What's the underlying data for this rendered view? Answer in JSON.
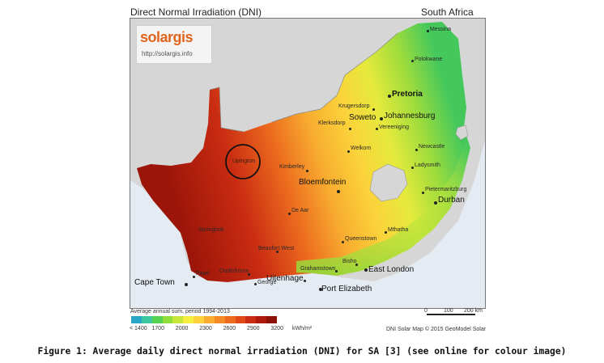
{
  "header": {
    "title": "Direct Normal Irradiation (DNI)",
    "region": "South Africa"
  },
  "logo": {
    "brand": "solargis",
    "url": "http://solargis.info"
  },
  "legend": {
    "title": "Average annual sum, period 1994-2013",
    "ticks": [
      "< 1400",
      "1700",
      "2000",
      "2300",
      "2600",
      "2900",
      "3200"
    ],
    "unit": "kWh/m²",
    "colors": [
      "#2aa7c8",
      "#3cc7a0",
      "#55d24f",
      "#8fdc3b",
      "#c8e63a",
      "#f4ef3e",
      "#fbd23a",
      "#f8ad30",
      "#f48a26",
      "#ec6a1e",
      "#df4a17",
      "#c92c12",
      "#ad1a0c",
      "#8c0f08"
    ]
  },
  "scale": {
    "labels": [
      "0",
      "100",
      "200 km"
    ]
  },
  "credit": "DNI Solar Map © 2015 GeoModel Solar",
  "marker": {
    "label": "Upington"
  },
  "cities": {
    "messina": "Messina",
    "polokwane": "Polokwane",
    "pretoria": "Pretoria",
    "krugersdorp": "Krugersdorp",
    "johannesburg": "Johannesburg",
    "soweto": "Soweto",
    "vereeniging": "Vereeniging",
    "klerksdorp": "Klerksdorp",
    "welkom": "Welkom",
    "newcastle": "Newcastle",
    "ladysmith": "Ladysmith",
    "kimberley": "Kimberley",
    "bloemfontein": "Bloemfontein",
    "pietermaritzburg": "Pietermaritzburg",
    "durban": "Durban",
    "deaar": "De Aar",
    "springbok": "Springbok",
    "beaufortwest": "Beaufort West",
    "queenstown": "Queenstown",
    "mthatha": "Mthatha",
    "bisho": "Bisho",
    "eastlondon": "East London",
    "grahamstown": "Grahamstown",
    "paarl": "Paarl",
    "capetown": "Cape Town",
    "oudtshoorn": "Oudtshoorn",
    "george": "George",
    "uitenhage": "Uitenhage",
    "portelizabeth": "Port Elizabeth"
  },
  "caption": "Figure 1: Average daily direct normal irradiation (DNI) for SA [3] (see online for colour image)"
}
